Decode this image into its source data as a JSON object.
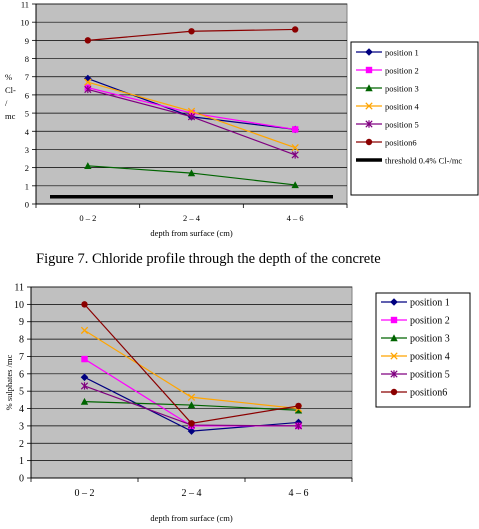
{
  "figure_caption": "Figure 7. Chloride profile through the depth of the concrete",
  "chart_data": [
    {
      "type": "line",
      "ylabel_lines": [
        "%",
        "Cl-",
        "/",
        "mc"
      ],
      "xlabel": "depth from surface (cm)",
      "categories": [
        "0 – 2",
        "2 – 4",
        "4 – 6"
      ],
      "ylim": [
        0,
        11
      ],
      "yticks": [
        0,
        1,
        2,
        3,
        4,
        5,
        6,
        7,
        8,
        9,
        10,
        11
      ],
      "grid": true,
      "background": "#c0c0c0",
      "legend_position": "right",
      "series": [
        {
          "name": "position 1",
          "color": "#000080",
          "marker": "diamond",
          "values": [
            6.9,
            4.8,
            4.1
          ]
        },
        {
          "name": "position 2",
          "color": "#ff00ff",
          "marker": "square",
          "values": [
            6.4,
            5.0,
            4.1
          ]
        },
        {
          "name": "position 3",
          "color": "#006400",
          "marker": "triangle",
          "values": [
            2.1,
            1.7,
            1.05
          ]
        },
        {
          "name": "position 4",
          "color": "#ffa500",
          "marker": "x",
          "values": [
            6.7,
            5.1,
            3.1
          ]
        },
        {
          "name": "position 5",
          "color": "#800080",
          "marker": "star",
          "values": [
            6.3,
            4.8,
            2.7
          ]
        },
        {
          "name": "position6",
          "color": "#8b0000",
          "marker": "circle",
          "values": [
            9.0,
            9.5,
            9.6
          ]
        },
        {
          "name": "threshold 0.4% Cl-/mc",
          "color": "#000000",
          "marker": "none",
          "values": [
            0.4,
            0.4,
            0.4
          ]
        }
      ]
    },
    {
      "type": "line",
      "ylabel": "% sulphates /mc",
      "xlabel": "depth from surface (cm)",
      "categories": [
        "0 – 2",
        "2 – 4",
        "4 – 6"
      ],
      "ylim": [
        0,
        11
      ],
      "yticks": [
        0,
        1,
        2,
        3,
        4,
        5,
        6,
        7,
        8,
        9,
        10,
        11
      ],
      "grid": true,
      "background": "#c0c0c0",
      "legend_position": "right",
      "series": [
        {
          "name": "position 1",
          "color": "#000080",
          "marker": "diamond",
          "values": [
            5.8,
            2.7,
            3.2
          ]
        },
        {
          "name": "position 2",
          "color": "#ff00ff",
          "marker": "square",
          "values": [
            6.85,
            3.0,
            3.0
          ]
        },
        {
          "name": "position 3",
          "color": "#006400",
          "marker": "triangle",
          "values": [
            4.4,
            4.2,
            3.9
          ]
        },
        {
          "name": "position 4",
          "color": "#ffa500",
          "marker": "x",
          "values": [
            8.5,
            4.65,
            4.0
          ]
        },
        {
          "name": "position 5",
          "color": "#800080",
          "marker": "star",
          "values": [
            5.3,
            3.05,
            3.0
          ]
        },
        {
          "name": "position6",
          "color": "#8b0000",
          "marker": "circle",
          "values": [
            10.0,
            3.15,
            4.15
          ]
        }
      ]
    }
  ]
}
